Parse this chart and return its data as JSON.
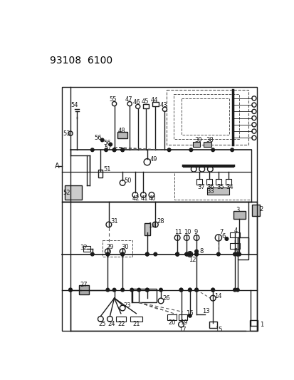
{
  "title": "93108  6100",
  "bg_color": "#ffffff",
  "diagram_color": "#1a1a1a",
  "dashed_color": "#555555",
  "fig_width": 4.14,
  "fig_height": 5.33
}
